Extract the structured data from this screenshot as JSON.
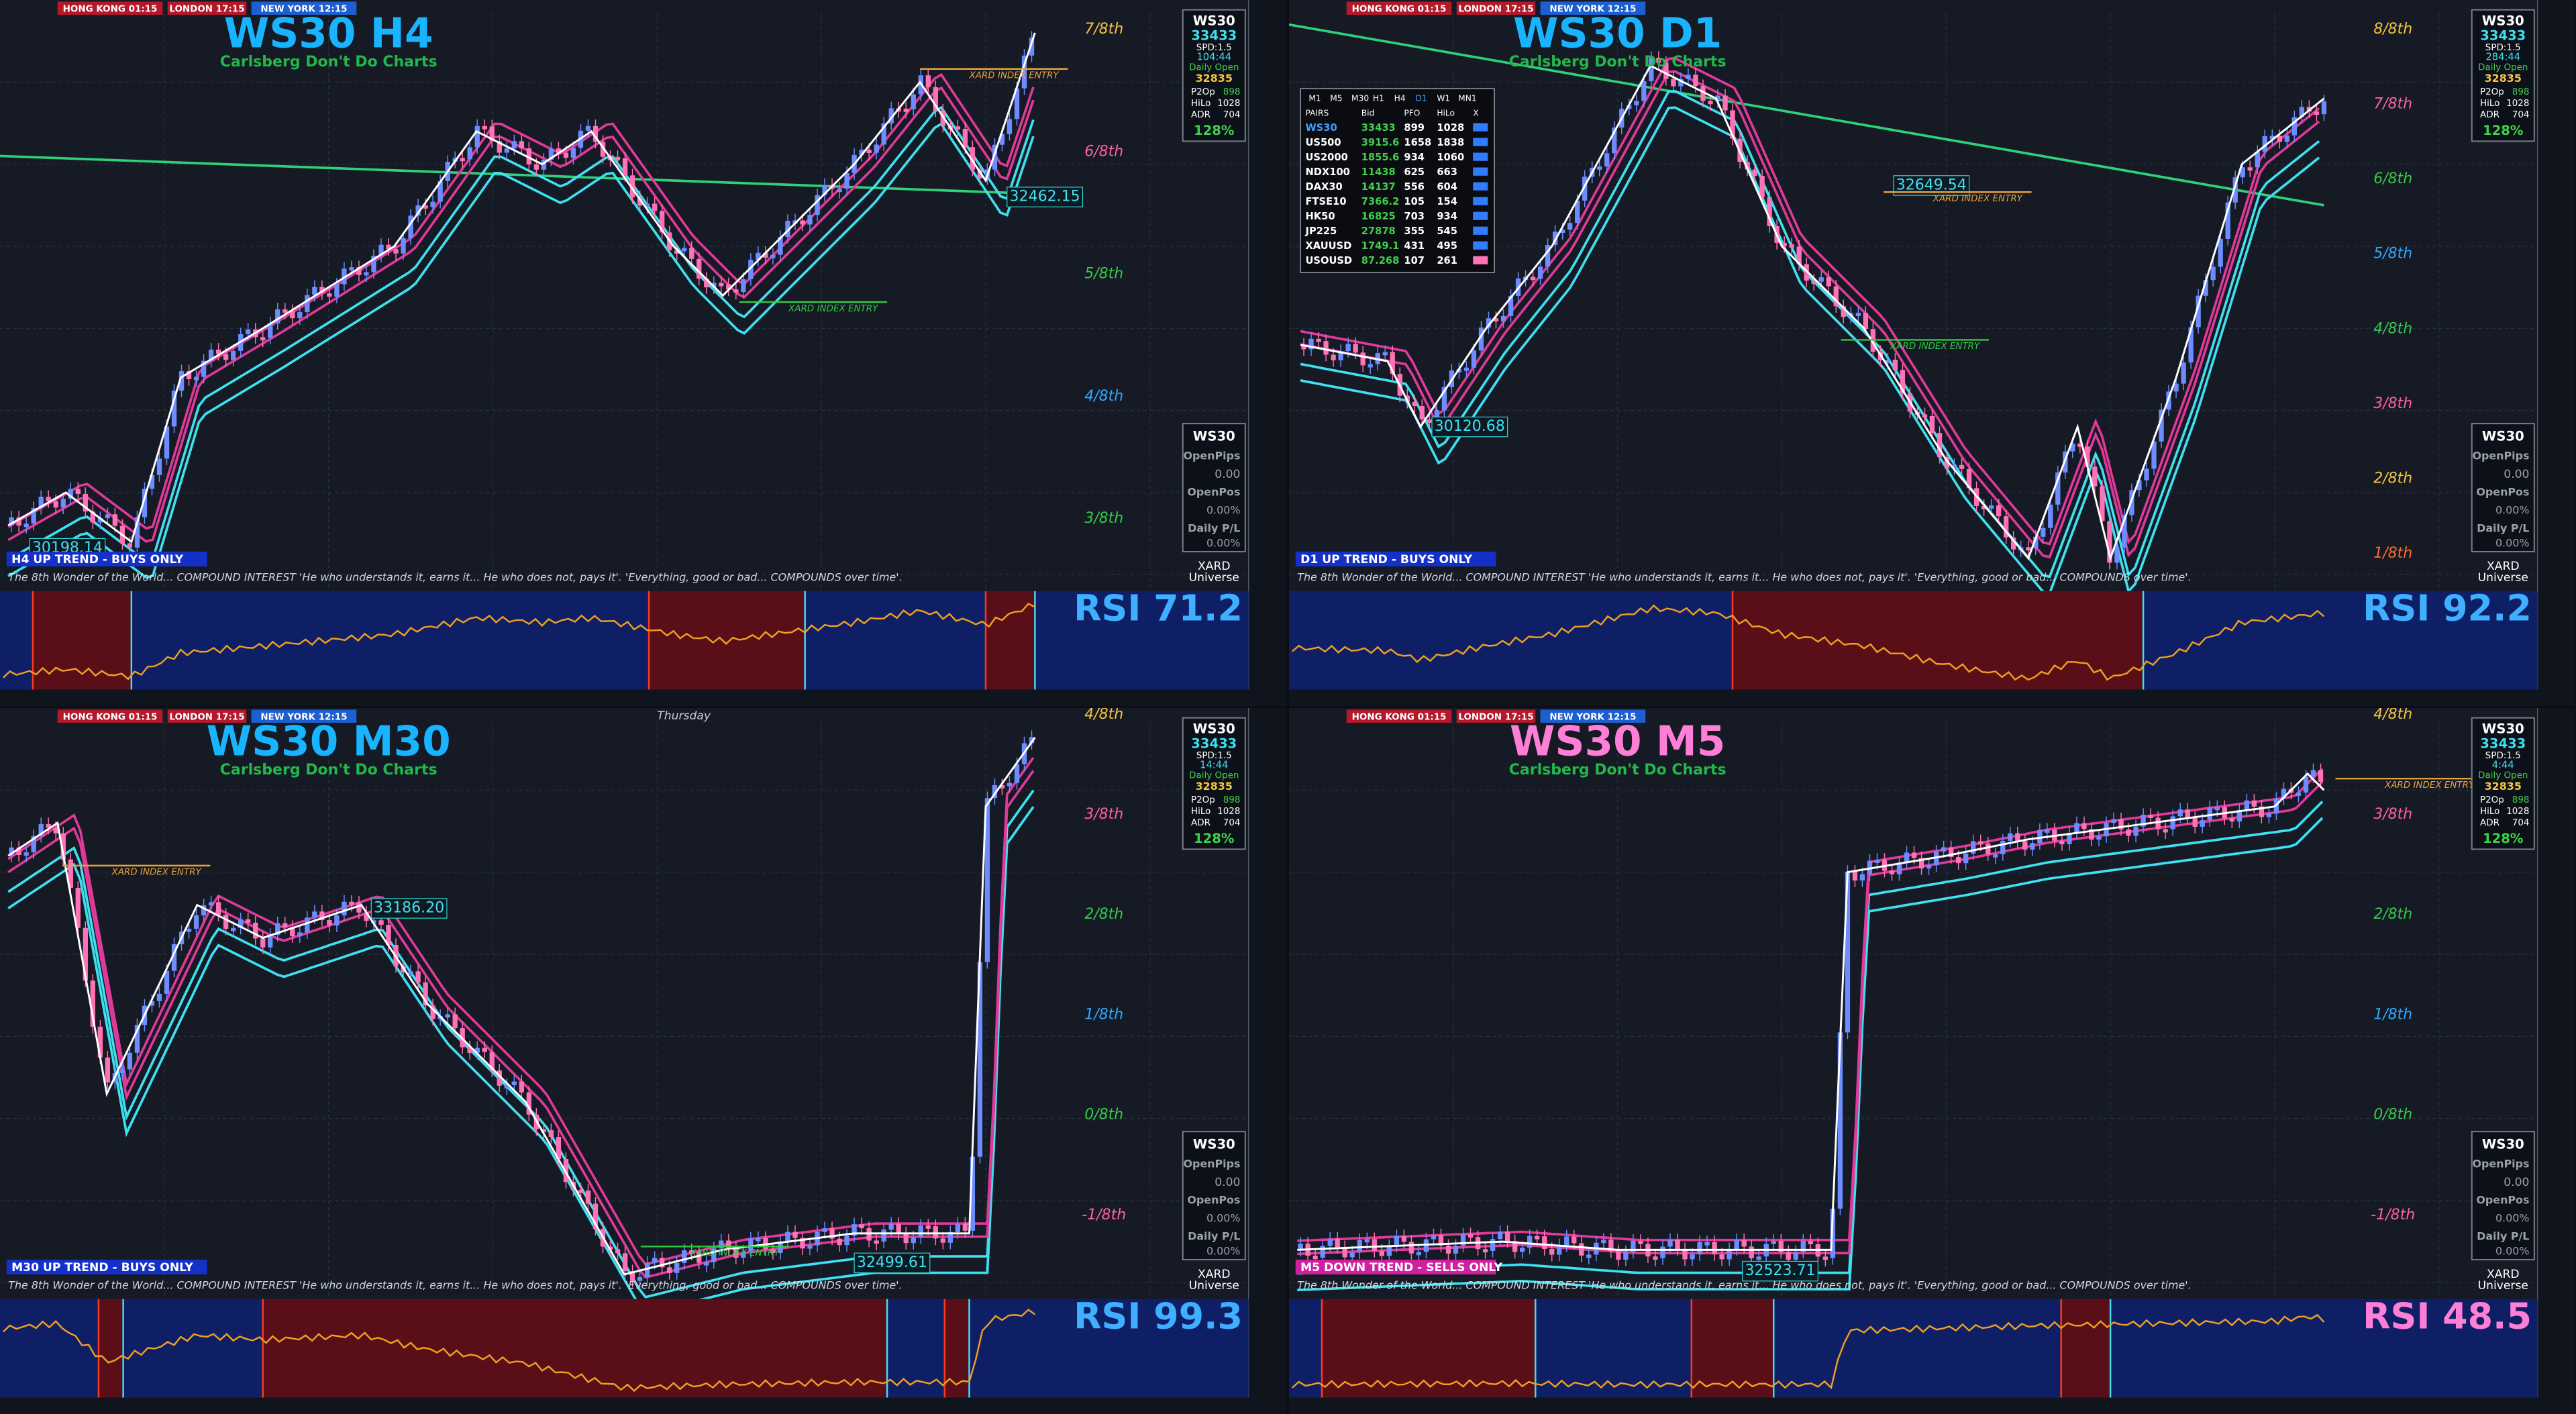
{
  "sessions": [
    "HONG KONG 01:15",
    "LONDON 17:15",
    "NEW YORK 12:15"
  ],
  "panels": [
    {
      "title": "WS30 H4",
      "subtitle": "Carlsberg Don't Do Charts",
      "trend": "H4 UP TREND - BUYS ONLY",
      "quote": "The 8th Wonder of the World... COMPOUND INTEREST  'He who understands it, earns it... He who does not, pays it'.        'Everything, good or bad... COMPOUNDS over time'.",
      "rsi": "RSI 71.2",
      "octaves": [
        "7/8th",
        "6/8th",
        "5/8th",
        "4/8th",
        "3/8th"
      ],
      "price_labels": [
        "30198.14",
        "32462.15"
      ],
      "annotations": [
        "XARD INDEX ENTRY",
        "XARD INDEX ENTRY"
      ],
      "info": {
        "symbol": "WS30",
        "price": "33433",
        "spread": "SPD:1.5",
        "timer": "104:44",
        "daily_open_label": "Daily Open",
        "daily_open": "32835",
        "stats": [
          [
            "P2Op",
            "898"
          ],
          [
            "HiLo",
            "1028"
          ],
          [
            "ADR",
            "704"
          ]
        ],
        "percent": "128%"
      },
      "account": {
        "symbol": "WS30",
        "open_pips_label": "OpenPips",
        "open_pips": "0.00",
        "open_pos_label": "OpenPos",
        "open_pos": "0.00%",
        "daily_pl_label": "Daily P/L",
        "daily_pl": "0.00%"
      },
      "brand": [
        "XARD",
        "Universe"
      ]
    },
    {
      "title": "WS30 D1",
      "subtitle": "Carlsberg Don't Do Charts",
      "trend": "D1 UP TREND - BUYS ONLY",
      "quote": "The 8th Wonder of the World... COMPOUND INTEREST  'He who understands it, earns it... He who does not, pays it'.        'Everything, good or bad... COMPOUNDS over time'.",
      "rsi": "RSI 92.2",
      "octaves": [
        "8/8th",
        "7/8th",
        "6/8th",
        "5/8th",
        "4/8th",
        "3/8th",
        "2/8th",
        "1/8th"
      ],
      "price_labels": [
        "32649.54",
        "30120.68"
      ],
      "annotations": [
        "XARD INDEX ENTRY",
        "XARD INDEX ENTRY"
      ],
      "info": {
        "symbol": "WS30",
        "price": "33433",
        "spread": "SPD:1.5",
        "timer": "284:44",
        "daily_open_label": "Daily Open",
        "daily_open": "32835",
        "stats": [
          [
            "P2Op",
            "898"
          ],
          [
            "HiLo",
            "1028"
          ],
          [
            "ADR",
            "704"
          ]
        ],
        "percent": "128%"
      },
      "account": {
        "symbol": "WS30",
        "open_pips_label": "OpenPips",
        "open_pips": "0.00",
        "open_pos_label": "OpenPos",
        "open_pos": "0.00%",
        "daily_pl_label": "Daily P/L",
        "daily_pl": "0.00%"
      },
      "brand": [
        "XARD",
        "Universe"
      ],
      "pairs_table": {
        "timeframes": [
          "M1",
          "M5",
          "M30",
          "H1",
          "H4",
          "D1",
          "W1",
          "MN1"
        ],
        "headers": [
          "PAIRS",
          "Bid",
          "PFO",
          "HiLo",
          "X"
        ],
        "rows": [
          [
            "WS30",
            "33433",
            "899",
            "1028"
          ],
          [
            "US500",
            "3915.6",
            "1658",
            "1838"
          ],
          [
            "US2000",
            "1855.6",
            "934",
            "1060"
          ],
          [
            "NDX100",
            "11438",
            "625",
            "663"
          ],
          [
            "DAX30",
            "14137",
            "556",
            "604"
          ],
          [
            "FTSE10",
            "7366.2",
            "105",
            "154"
          ],
          [
            "HK50",
            "16825",
            "703",
            "934"
          ],
          [
            "JP225",
            "27878",
            "355",
            "545"
          ],
          [
            "XAUUSD",
            "1749.1",
            "431",
            "495"
          ],
          [
            "USOUSD",
            "87.268",
            "107",
            "261"
          ]
        ]
      }
    },
    {
      "title": "WS30 M30",
      "subtitle": "Carlsberg Don't Do Charts",
      "trend": "M30 UP TREND - BUYS ONLY",
      "quote": "The 8th Wonder of the World... COMPOUND INTEREST  'He who understands it, earns it... He who does not, pays it'.        'Everything, good or bad... COMPOUNDS over time'.",
      "rsi": "RSI 99.3",
      "octaves": [
        "4/8th",
        "3/8th",
        "2/8th",
        "1/8th",
        "0/8th",
        "-1/8th"
      ],
      "price_labels": [
        "33186.20",
        "32499.61"
      ],
      "annotations": [
        "XARD INDEX ENTRY",
        "XARD INDEX ENTRY"
      ],
      "day_label": "Thursday",
      "info": {
        "symbol": "WS30",
        "price": "33433",
        "spread": "SPD:1.5",
        "timer": "14:44",
        "daily_open_label": "Daily Open",
        "daily_open": "32835",
        "stats": [
          [
            "P2Op",
            "898"
          ],
          [
            "HiLo",
            "1028"
          ],
          [
            "ADR",
            "704"
          ]
        ],
        "percent": "128%"
      },
      "account": {
        "symbol": "WS30",
        "open_pips_label": "OpenPips",
        "open_pips": "0.00",
        "open_pos_label": "OpenPos",
        "open_pos": "0.00%",
        "daily_pl_label": "Daily P/L",
        "daily_pl": "0.00%"
      },
      "brand": [
        "XARD",
        "Universe"
      ]
    },
    {
      "title": "WS30 M5",
      "subtitle": "Carlsberg Don't Do Charts",
      "trend": "M5  DOWN TREND - SELLS ONLY",
      "quote": "The 8th Wonder of the World... COMPOUND INTEREST  'He who understands it, earns it... He who does not, pays it'.        'Everything, good or bad... COMPOUNDS over time'.",
      "rsi": "RSI 48.5",
      "octaves": [
        "4/8th",
        "3/8th",
        "2/8th",
        "1/8th",
        "0/8th",
        "-1/8th"
      ],
      "price_labels": [
        "32523.71"
      ],
      "annotations": [
        "XARD INDEX ENTRY"
      ],
      "info": {
        "symbol": "WS30",
        "price": "33433",
        "spread": "SPD:1.5",
        "timer": "4:44",
        "daily_open_label": "Daily Open",
        "daily_open": "32835",
        "stats": [
          [
            "P2Op",
            "898"
          ],
          [
            "HiLo",
            "1028"
          ],
          [
            "ADR",
            "704"
          ]
        ],
        "percent": "128%"
      },
      "account": {
        "symbol": "WS30",
        "open_pips_label": "OpenPips",
        "open_pips": "0.00",
        "open_pos_label": "OpenPos",
        "open_pos": "0.00%",
        "daily_pl_label": "Daily P/L",
        "daily_pl": "0.00%"
      },
      "brand": [
        "XARD",
        "Universe"
      ]
    }
  ]
}
